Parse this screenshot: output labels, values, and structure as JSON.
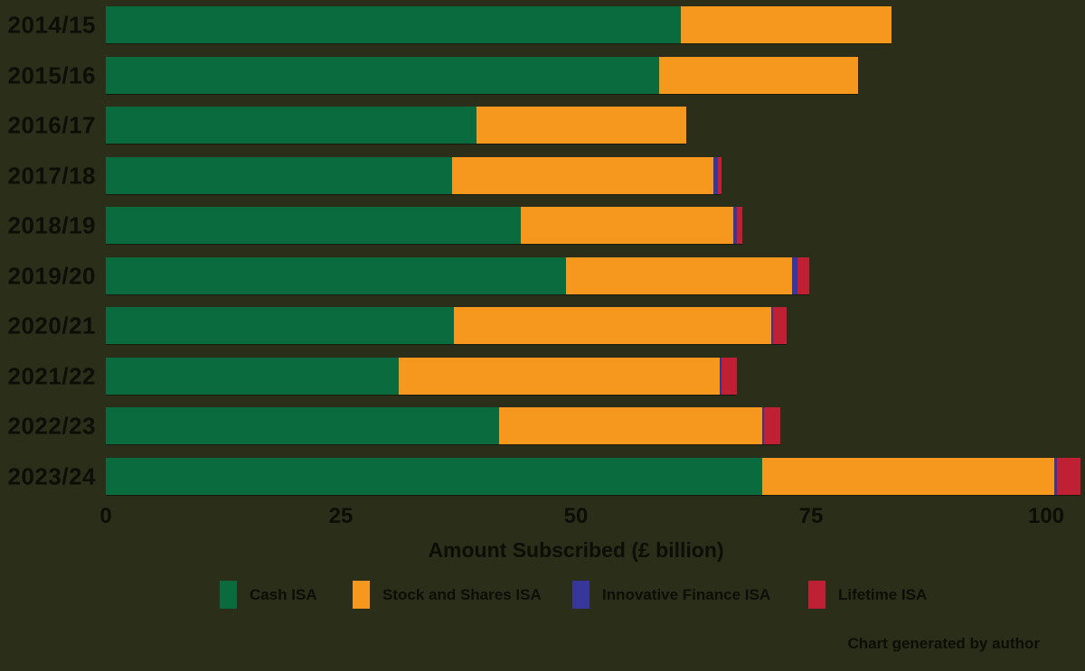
{
  "page": {
    "background_color": "#2b2e19",
    "text_color": "#0c0e07",
    "footer_note": "Chart generated by author"
  },
  "chart_data": {
    "type": "bar",
    "orientation": "horizontal",
    "stacked": true,
    "title": "",
    "xlabel": "Amount Subscribed (£ billion)",
    "ylabel": "",
    "categories": [
      "2014/15",
      "2015/16",
      "2016/17",
      "2017/18",
      "2018/19",
      "2019/20",
      "2020/21",
      "2021/22",
      "2022/23",
      "2023/24"
    ],
    "series": [
      {
        "name": "Cash ISA",
        "color": "#0a6b3e",
        "values": [
          61.2,
          58.8,
          39.4,
          36.8,
          44.1,
          48.9,
          37.0,
          31.2,
          41.8,
          69.8
        ]
      },
      {
        "name": "Stock and Shares ISA",
        "color": "#f6971e",
        "values": [
          22.4,
          21.2,
          22.3,
          27.8,
          22.6,
          24.1,
          33.8,
          34.1,
          28.0,
          31.1
        ]
      },
      {
        "name": "Innovative Finance ISA",
        "color": "#37379b",
        "values": [
          0,
          0,
          0,
          0.5,
          0.4,
          0.6,
          0.2,
          0.2,
          0.2,
          0.3
        ]
      },
      {
        "name": "Lifetime ISA",
        "color": "#c02033",
        "values": [
          0,
          0,
          0,
          0.4,
          0.6,
          1.2,
          1.4,
          1.6,
          1.7,
          2.5
        ]
      }
    ],
    "x_ticks": [
      0,
      25,
      50,
      75,
      100
    ],
    "xlim": [
      0,
      104
    ],
    "grid": false,
    "legend_position": "bottom"
  }
}
